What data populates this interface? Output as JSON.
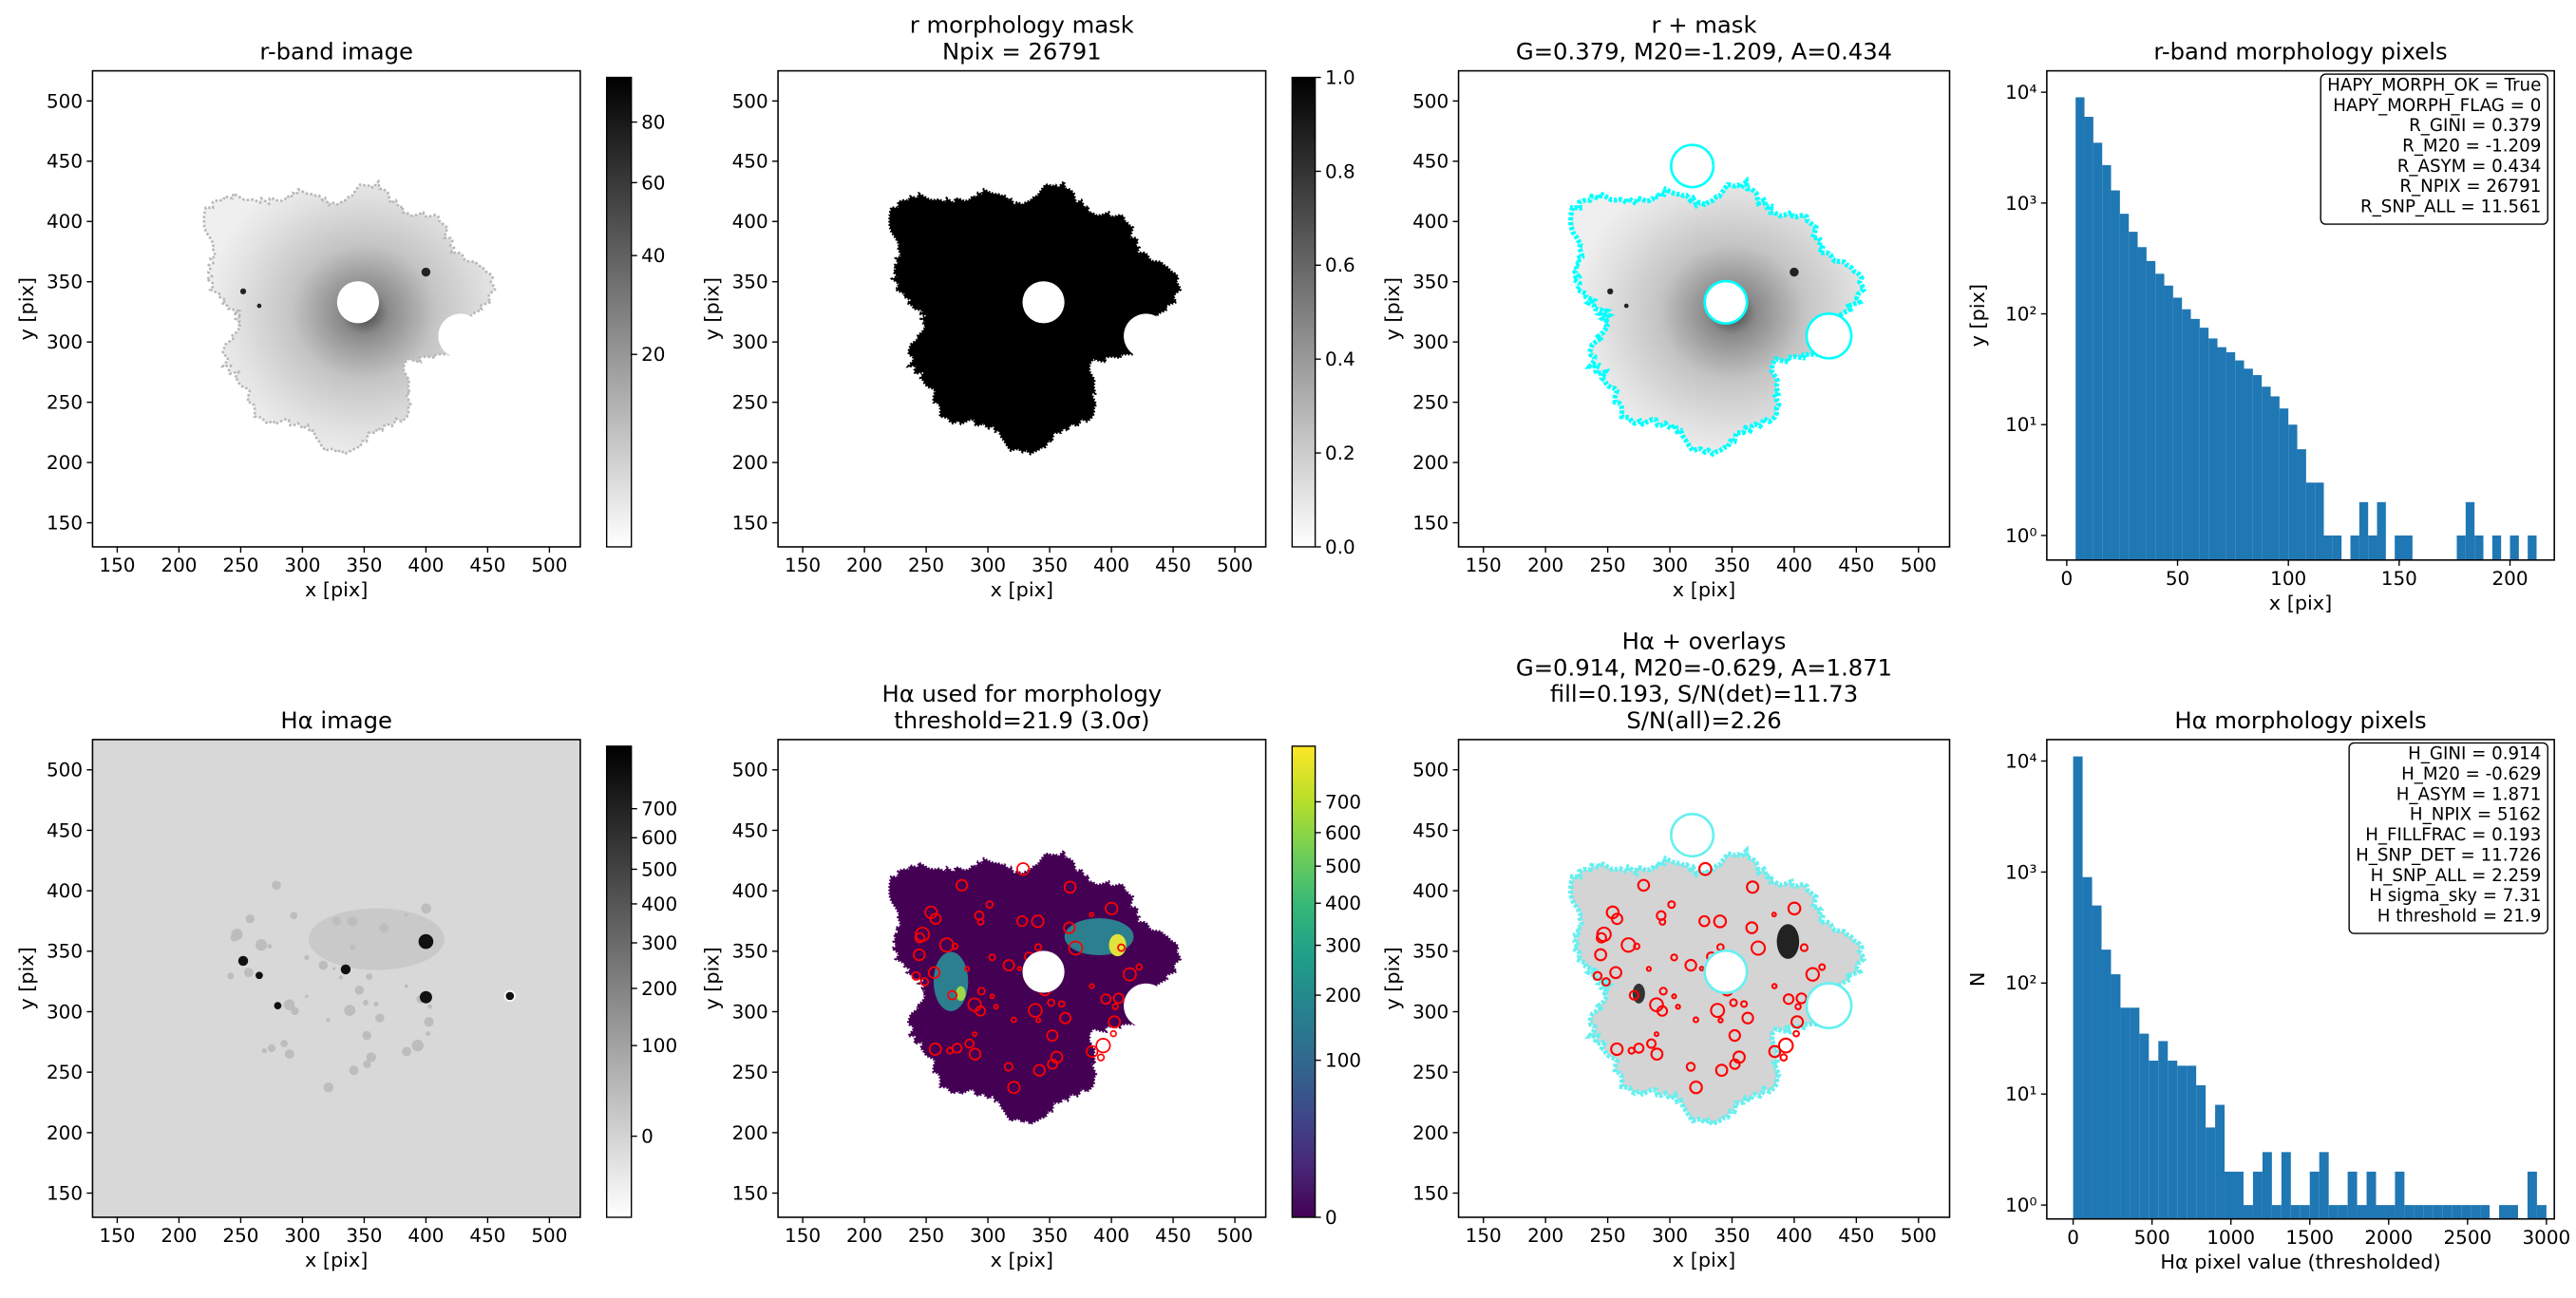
{
  "chart_data": [
    {
      "type": "image",
      "title": [
        "r-band image"
      ],
      "xlabel": "x [pix]",
      "ylabel": "y [pix]",
      "xlim": [
        130,
        525
      ],
      "ylim": [
        130,
        525
      ],
      "xticks": [
        150,
        200,
        250,
        300,
        350,
        400,
        450,
        500
      ],
      "yticks": [
        150,
        200,
        250,
        300,
        350,
        400,
        450,
        500
      ],
      "colorbar": {
        "cmap": "gray_r",
        "scale": "sqrt",
        "clim": [
          4.5,
          96.7
        ],
        "ticks": [
          20,
          40,
          60,
          80
        ]
      }
    },
    {
      "type": "image",
      "title": [
        "r morphology mask",
        "Npix = 26791"
      ],
      "xlabel": "x [pix]",
      "ylabel": "y [pix]",
      "xlim": [
        130,
        525
      ],
      "ylim": [
        130,
        525
      ],
      "xticks": [
        150,
        200,
        250,
        300,
        350,
        400,
        450,
        500
      ],
      "yticks": [
        150,
        200,
        250,
        300,
        350,
        400,
        450,
        500
      ],
      "colorbar": {
        "cmap": "gray_r",
        "scale": "linear",
        "clim": [
          0,
          1
        ],
        "ticks": [
          {
            "value": 0,
            "label": "0.0"
          },
          0.2,
          0.4,
          0.6,
          0.8,
          {
            "value": 1,
            "label": "1.0"
          }
        ]
      }
    },
    {
      "type": "image",
      "title": [
        "r + mask",
        "G=0.379, M20=-1.209, A=0.434"
      ],
      "xlabel": "x [pix]",
      "ylabel": "y [pix]",
      "xlim": [
        130,
        525
      ],
      "ylim": [
        130,
        525
      ],
      "xticks": [
        150,
        200,
        250,
        300,
        350,
        400,
        450,
        500
      ],
      "yticks": [
        150,
        200,
        250,
        300,
        350,
        400,
        450,
        500
      ]
    },
    {
      "type": "histogram",
      "title": [
        "r-band morphology pixels"
      ],
      "xlabel": "x [pix]",
      "ylabel": "y [pix]",
      "color": "#1f77b4",
      "log_y": true,
      "xlim": [
        -9,
        220
      ],
      "ylim": [
        0.6,
        15600
      ],
      "xticks": [
        0,
        50,
        100,
        150,
        200
      ],
      "yticks": [
        {
          "value": 1,
          "label": "10⁰"
        },
        {
          "value": 10,
          "label": "10¹"
        },
        {
          "value": 100,
          "label": "10²"
        },
        {
          "value": 1000,
          "label": "10³"
        },
        {
          "value": 10000,
          "label": "10⁴"
        }
      ],
      "bins": [
        4,
        8,
        12,
        16,
        20,
        24,
        28,
        32,
        36,
        40,
        44,
        48,
        52,
        56,
        60,
        64,
        68,
        72,
        76,
        80,
        84,
        88,
        92,
        96,
        100,
        104,
        108,
        112,
        116,
        120,
        124,
        128,
        132,
        136,
        140,
        144,
        148,
        152,
        156,
        160,
        164,
        168,
        172,
        176,
        180,
        184,
        188,
        192,
        196,
        200,
        204,
        208,
        212
      ],
      "values": [
        9000,
        6000,
        3500,
        2200,
        1300,
        800,
        550,
        400,
        300,
        230,
        180,
        140,
        110,
        90,
        75,
        60,
        50,
        45,
        38,
        32,
        28,
        22,
        18,
        14,
        10,
        6,
        3,
        3,
        1,
        1,
        0,
        1,
        2,
        1,
        2,
        0,
        1,
        1,
        0,
        0,
        0,
        0,
        0,
        1,
        2,
        1,
        0,
        1,
        0,
        1,
        0,
        1
      ],
      "annotation": [
        "HAPY_MORPH_OK = True",
        "HAPY_MORPH_FLAG = 0",
        "R_GINI = 0.379",
        "R_M20 = -1.209",
        "R_ASYM = 0.434",
        "R_NPIX = 26791",
        "R_SNP_ALL = 11.561"
      ]
    },
    {
      "type": "image",
      "title": [
        "Hα image"
      ],
      "xlabel": "x [pix]",
      "ylabel": "y [pix]",
      "xlim": [
        130,
        525
      ],
      "ylim": [
        130,
        525
      ],
      "xticks": [
        150,
        200,
        250,
        300,
        350,
        400,
        450,
        500
      ],
      "yticks": [
        150,
        200,
        250,
        300,
        350,
        400,
        450,
        500
      ],
      "colorbar": {
        "cmap": "gray_r",
        "scale": "sqrt",
        "clim": [
          -28.7,
          940
        ],
        "ticks": [
          0,
          100,
          200,
          300,
          400,
          500,
          600,
          700
        ]
      }
    },
    {
      "type": "image",
      "title": [
        "Hα used for morphology",
        "threshold=21.9 (3.0σ)"
      ],
      "xlabel": "x [pix]",
      "ylabel": "y [pix]",
      "xlim": [
        130,
        525
      ],
      "ylim": [
        130,
        525
      ],
      "xticks": [
        150,
        200,
        250,
        300,
        350,
        400,
        450,
        500
      ],
      "yticks": [
        150,
        200,
        250,
        300,
        350,
        400,
        450,
        500
      ],
      "colorbar": {
        "cmap": "viridis",
        "scale": "sqrt",
        "clim": [
          0,
          900
        ],
        "ticks": [
          0,
          100,
          200,
          300,
          400,
          500,
          600,
          700
        ]
      }
    },
    {
      "type": "image",
      "title": [
        "Hα + overlays",
        "G=0.914, M20=-0.629, A=1.871",
        "fill=0.193, S/N(det)=11.73",
        "S/N(all)=2.26"
      ],
      "xlabel": "x [pix]",
      "ylabel": "y [pix]",
      "xlim": [
        130,
        525
      ],
      "ylim": [
        130,
        525
      ],
      "xticks": [
        150,
        200,
        250,
        300,
        350,
        400,
        450,
        500
      ],
      "yticks": [
        150,
        200,
        250,
        300,
        350,
        400,
        450,
        500
      ]
    },
    {
      "type": "histogram",
      "title": [
        "Hα morphology pixels"
      ],
      "xlabel": "Hα pixel value (thresholded)",
      "ylabel": "N",
      "color": "#1f77b4",
      "log_y": true,
      "xlim": [
        -167,
        3050
      ],
      "ylim": [
        0.75,
        15600
      ],
      "xticks": [
        0,
        500,
        1000,
        1500,
        2000,
        2500,
        3000
      ],
      "yticks": [
        {
          "value": 1,
          "label": "10⁰"
        },
        {
          "value": 10,
          "label": "10¹"
        },
        {
          "value": 100,
          "label": "10²"
        },
        {
          "value": 1000,
          "label": "10³"
        },
        {
          "value": 10000,
          "label": "10⁴"
        }
      ],
      "bins": [
        0,
        60,
        120,
        180,
        240,
        300,
        360,
        420,
        480,
        540,
        600,
        660,
        720,
        780,
        840,
        900,
        960,
        1020,
        1080,
        1140,
        1200,
        1260,
        1320,
        1380,
        1440,
        1500,
        1560,
        1620,
        1680,
        1740,
        1800,
        1860,
        1920,
        1980,
        2040,
        2100,
        2160,
        2220,
        2280,
        2340,
        2400,
        2460,
        2520,
        2580,
        2640,
        2700,
        2760,
        2820,
        2880,
        2940,
        3000
      ],
      "values": [
        11000,
        900,
        500,
        200,
        120,
        60,
        60,
        35,
        20,
        30,
        20,
        18,
        18,
        12,
        5,
        8,
        2,
        2,
        1,
        2,
        3,
        1,
        3,
        1,
        1,
        2,
        3,
        1,
        1,
        2,
        1,
        2,
        1,
        1,
        2,
        1,
        1,
        1,
        1,
        1,
        1,
        1,
        1,
        1,
        0,
        1,
        1,
        0,
        2,
        1
      ],
      "annotation": [
        "H_GINI = 0.914",
        "H_M20 = -0.629",
        "H_ASYM = 1.871",
        "H_NPIX = 5162",
        "H_FILLFRAC = 0.193",
        "H_SNP_DET = 11.726",
        "H_SNP_ALL = 2.259",
        "H sigma_sky = 7.31",
        "H threshold = 21.9"
      ]
    }
  ]
}
